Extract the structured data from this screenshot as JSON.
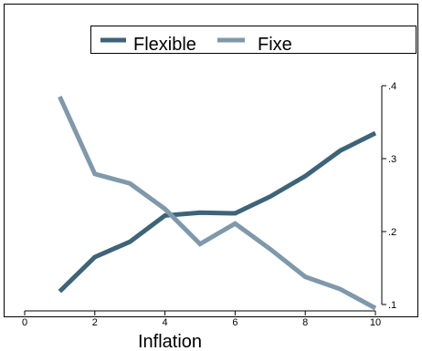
{
  "chart_data": {
    "type": "line",
    "xlabel": "Inflation",
    "x_ticks": [
      0,
      2,
      4,
      6,
      8,
      10
    ],
    "x_tick_labels": [
      "0",
      "2",
      "4",
      "6",
      "8",
      "10"
    ],
    "xlim": [
      0,
      10
    ],
    "y_ticks": [
      0.1,
      0.2,
      0.3,
      0.4
    ],
    "y_tick_labels": [
      ".1",
      ".2",
      ".3",
      ".4"
    ],
    "ylim": [
      0.1,
      0.4
    ],
    "y_axis_side": "right",
    "grid": false,
    "legend_position": "top",
    "x": [
      1,
      2,
      3,
      4,
      5,
      6,
      7,
      8,
      9,
      10
    ],
    "series": [
      {
        "name": "Flexible",
        "color": "#3d6478",
        "values": [
          0.118,
          0.165,
          0.186,
          0.222,
          0.226,
          0.225,
          0.248,
          0.276,
          0.311,
          0.335
        ]
      },
      {
        "name": "Fixe",
        "color": "#7f99ab",
        "values": [
          0.385,
          0.279,
          0.266,
          0.231,
          0.183,
          0.211,
          0.176,
          0.138,
          0.121,
          0.095
        ]
      }
    ]
  }
}
